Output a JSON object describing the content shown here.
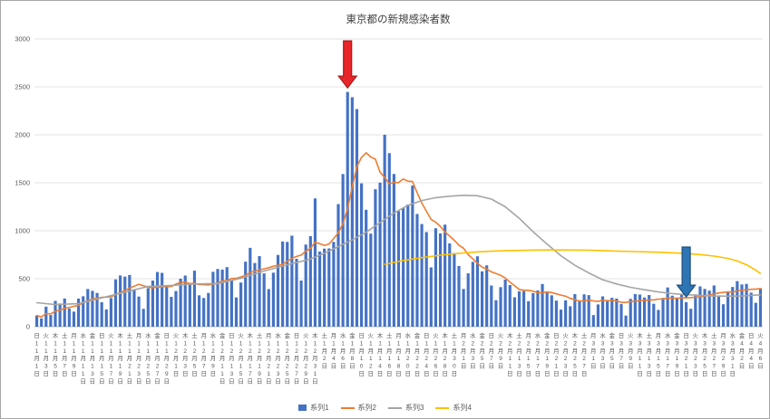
{
  "chart_data": {
    "type": "bar",
    "title": "東京都の新規感染者数",
    "xlabel": "",
    "ylabel": "",
    "ylim": [
      0,
      3000
    ],
    "y_ticks": [
      0,
      500,
      1000,
      1500,
      2000,
      2500,
      3000
    ],
    "grid": true,
    "legend_position": "bottom",
    "n_categories": 157,
    "x_label_every": 2,
    "colors": {
      "grid": "#e3e3e3",
      "axis": "#bfbfbf",
      "tick_text": "#595959",
      "title_text": "#404040"
    },
    "x_labels": [
      [
        "日",
        11,
        1
      ],
      [
        "火",
        11,
        3
      ],
      [
        "木",
        11,
        5
      ],
      [
        "土",
        11,
        7
      ],
      [
        "月",
        11,
        9
      ],
      [
        "水",
        11,
        11
      ],
      [
        "金",
        11,
        13
      ],
      [
        "日",
        11,
        15
      ],
      [
        "火",
        11,
        17
      ],
      [
        "木",
        11,
        19
      ],
      [
        "土",
        11,
        21
      ],
      [
        "月",
        11,
        23
      ],
      [
        "水",
        11,
        25
      ],
      [
        "金",
        11,
        27
      ],
      [
        "日",
        11,
        29
      ],
      [
        "火",
        12,
        1
      ],
      [
        "木",
        12,
        3
      ],
      [
        "土",
        12,
        5
      ],
      [
        "月",
        12,
        7
      ],
      [
        "水",
        12,
        9
      ],
      [
        "金",
        12,
        11
      ],
      [
        "日",
        12,
        13
      ],
      [
        "火",
        12,
        15
      ],
      [
        "木",
        12,
        17
      ],
      [
        "土",
        12,
        19
      ],
      [
        "月",
        12,
        21
      ],
      [
        "水",
        12,
        23
      ],
      [
        "金",
        12,
        25
      ],
      [
        "日",
        12,
        27
      ],
      [
        "火",
        12,
        29
      ],
      [
        "木",
        12,
        31
      ],
      [
        "土",
        1,
        2
      ],
      [
        "月",
        1,
        4
      ],
      [
        "水",
        1,
        6
      ],
      [
        "金",
        1,
        8
      ],
      [
        "日",
        1,
        10
      ],
      [
        "火",
        1,
        12
      ],
      [
        "木",
        1,
        14
      ],
      [
        "土",
        1,
        16
      ],
      [
        "月",
        1,
        18
      ],
      [
        "水",
        1,
        20
      ],
      [
        "金",
        1,
        22
      ],
      [
        "日",
        1,
        24
      ],
      [
        "火",
        1,
        26
      ],
      [
        "木",
        1,
        28
      ],
      [
        "土",
        1,
        30
      ],
      [
        "月",
        2,
        1
      ],
      [
        "水",
        2,
        3
      ],
      [
        "金",
        2,
        5
      ],
      [
        "日",
        2,
        7
      ],
      [
        "火",
        2,
        9
      ],
      [
        "木",
        2,
        11
      ],
      [
        "土",
        2,
        13
      ],
      [
        "月",
        2,
        15
      ],
      [
        "水",
        2,
        17
      ],
      [
        "金",
        2,
        19
      ],
      [
        "日",
        2,
        21
      ],
      [
        "火",
        2,
        23
      ],
      [
        "木",
        2,
        25
      ],
      [
        "土",
        2,
        27
      ],
      [
        "月",
        3,
        1
      ],
      [
        "水",
        3,
        3
      ],
      [
        "金",
        3,
        5
      ],
      [
        "日",
        3,
        7
      ],
      [
        "火",
        3,
        9
      ],
      [
        "木",
        3,
        11
      ],
      [
        "土",
        3,
        13
      ],
      [
        "月",
        3,
        15
      ],
      [
        "水",
        3,
        17
      ],
      [
        "金",
        3,
        19
      ],
      [
        "日",
        3,
        21
      ],
      [
        "火",
        3,
        23
      ],
      [
        "木",
        3,
        25
      ],
      [
        "土",
        3,
        27
      ],
      [
        "月",
        3,
        29
      ],
      [
        "水",
        3,
        31
      ],
      [
        "金",
        4,
        2
      ],
      [
        "日",
        4,
        4
      ],
      [
        "火",
        4,
        6
      ]
    ],
    "series": [
      {
        "name": "系列1",
        "type": "bar",
        "color": "#4472c4",
        "values": [
          116,
          87,
          209,
          122,
          269,
          242,
          294,
          189,
          157,
          293,
          317,
          393,
          374,
          352,
          255,
          180,
          298,
          493,
          534,
          522,
          539,
          391,
          314,
          186,
          401,
          481,
          570,
          561,
          418,
          311,
          372,
          500,
          533,
          449,
          584,
          327,
          299,
          352,
          572,
          602,
          595,
          621,
          480,
          305,
          460,
          678,
          822,
          664,
          736,
          556,
          392,
          563,
          748,
          888,
          884,
          949,
          708,
          481,
          856,
          944,
          1337,
          783,
          814,
          816,
          884,
          1278,
          1591,
          2447,
          2392,
          2268,
          1494,
          1219,
          970,
          1433,
          1502,
          2001,
          1809,
          1592,
          1204,
          1240,
          1274,
          1471,
          1175,
          1070,
          986,
          618,
          1026,
          973,
          1064,
          868,
          769,
          633,
          393,
          556,
          676,
          734,
          577,
          639,
          429,
          276,
          412,
          491,
          434,
          307,
          369,
          371,
          266,
          350,
          378,
          445,
          353,
          327,
          272,
          178,
          275,
          213,
          340,
          270,
          337,
          329,
          121,
          232,
          316,
          279,
          301,
          293,
          237,
          116,
          290,
          340,
          335,
          304,
          330,
          239,
          175,
          300,
          409,
          323,
          303,
          342,
          256,
          187,
          337,
          420,
          394,
          376,
          430,
          313,
          234,
          364,
          414,
          475,
          440,
          446,
          355,
          249,
          399
        ]
      },
      {
        "name": "系列2",
        "type": "line",
        "color": "#ed7d31",
        "values": [
          116,
          102,
          137,
          134,
          161,
          174,
          191,
          202,
          212,
          224,
          252,
          269,
          288,
          296,
          306,
          309,
          310,
          335,
          355,
          376,
          403,
          422,
          442,
          426,
          412,
          405,
          412,
          415,
          419,
          418,
          445,
          459,
          466,
          449,
          452,
          439,
          438,
          435,
          445,
          455,
          476,
          481,
          503,
          504,
          519,
          534,
          566,
          576,
          592,
          603,
          615,
          630,
          640,
          650,
          681,
          711,
          733,
          746,
          788,
          816,
          880,
          865,
          846,
          862,
          919,
          979,
          1072,
          1230,
          1460,
          1668,
          1765,
          1813,
          1769,
          1746,
          1611,
          1555,
          1490,
          1504,
          1502,
          1540,
          1517,
          1513,
          1395,
          1289,
          1203,
          1119,
          1089,
          1046,
          987,
          944,
          901,
          850,
          818,
          751,
          708,
          661,
          620,
          601,
          572,
          555,
          535,
          508,
          465,
          427,
          388,
          380,
          379,
          370,
          354,
          355,
          362,
          356,
          342,
          329,
          318,
          295,
          280,
          268,
          269,
          277,
          269,
          263,
          278,
          269,
          274,
          267,
          254,
          253,
          262,
          265,
          273,
          274,
          279,
          279,
          288,
          289,
          299,
          297,
          297,
          299,
          301,
          303,
          308,
          310,
          320,
          330,
          343,
          351,
          358,
          362,
          361,
          372,
          381,
          384,
          390,
          392,
          397
        ]
      },
      {
        "name": "系列3",
        "type": "line",
        "color": "#a5a5a5",
        "points": [
          [
            0,
            250
          ],
          [
            4,
            230
          ],
          [
            9,
            240
          ],
          [
            14,
            300
          ],
          [
            19,
            360
          ],
          [
            24,
            420
          ],
          [
            29,
            430
          ],
          [
            34,
            445
          ],
          [
            39,
            450
          ],
          [
            44,
            505
          ],
          [
            49,
            580
          ],
          [
            54,
            645
          ],
          [
            59,
            705
          ],
          [
            62,
            765
          ],
          [
            65,
            835
          ],
          [
            68,
            905
          ],
          [
            71,
            985
          ],
          [
            74,
            1085
          ],
          [
            77,
            1185
          ],
          [
            80,
            1265
          ],
          [
            83,
            1315
          ],
          [
            86,
            1345
          ],
          [
            89,
            1360
          ],
          [
            92,
            1370
          ],
          [
            95,
            1365
          ],
          [
            98,
            1330
          ],
          [
            101,
            1250
          ],
          [
            104,
            1130
          ],
          [
            107,
            990
          ],
          [
            110,
            860
          ],
          [
            113,
            740
          ],
          [
            116,
            640
          ],
          [
            119,
            560
          ],
          [
            122,
            490
          ],
          [
            125,
            445
          ],
          [
            128,
            410
          ],
          [
            131,
            385
          ],
          [
            134,
            362
          ],
          [
            137,
            345
          ],
          [
            140,
            334
          ],
          [
            143,
            326
          ],
          [
            146,
            320
          ],
          [
            149,
            318
          ],
          [
            152,
            320
          ],
          [
            156,
            332
          ]
        ]
      },
      {
        "name": "系列4",
        "type": "line",
        "color": "#ffc000",
        "points": [
          [
            75,
            650
          ],
          [
            79,
            690
          ],
          [
            83,
            720
          ],
          [
            87,
            745
          ],
          [
            91,
            765
          ],
          [
            95,
            780
          ],
          [
            99,
            790
          ],
          [
            104,
            795
          ],
          [
            109,
            800
          ],
          [
            114,
            800
          ],
          [
            119,
            798
          ],
          [
            124,
            790
          ],
          [
            129,
            783
          ],
          [
            134,
            776
          ],
          [
            139,
            766
          ],
          [
            143,
            752
          ],
          [
            146,
            736
          ],
          [
            149,
            712
          ],
          [
            151,
            685
          ],
          [
            153,
            645
          ],
          [
            155,
            590
          ],
          [
            156,
            555
          ]
        ]
      }
    ],
    "annotations": [
      {
        "name": "red-arrow",
        "shape": "down-arrow",
        "fill": "#e8262a",
        "stroke": "#a61c1f",
        "x_index": 67,
        "tail_value": 2980,
        "tip_value": 2490
      },
      {
        "name": "blue-arrow",
        "shape": "down-arrow",
        "fill": "#2e75b6",
        "stroke": "#1f4e79",
        "x_index": 140,
        "tail_value": 830,
        "tip_value": 310
      }
    ]
  }
}
